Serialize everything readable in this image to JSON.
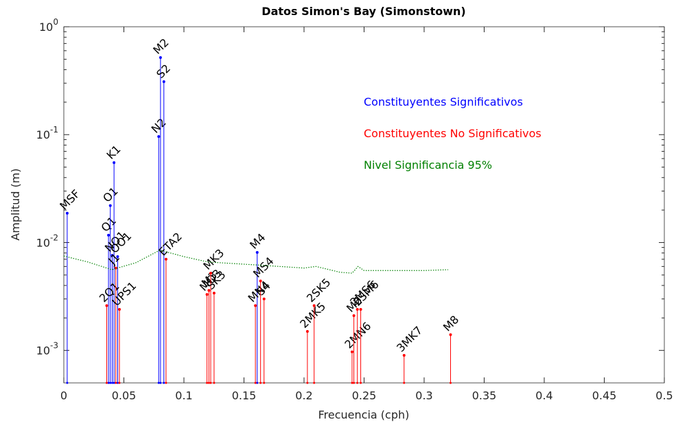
{
  "chart_data": {
    "type": "stem",
    "title": "Datos Simon's Bay (Simonstown)",
    "x_label": "Frecuencia (cph)",
    "y_label": "Amplitud (m)",
    "log_y": true,
    "xlim": [
      0,
      0.5
    ],
    "ylim": [
      0.0005,
      1
    ],
    "xticks": [
      0,
      0.05,
      0.1,
      0.15,
      0.2,
      0.25,
      0.3,
      0.35,
      0.4,
      0.45,
      0.5
    ],
    "yticks": [
      {
        "value": 0.001,
        "label": "10",
        "exponent": "-3"
      },
      {
        "value": 0.01,
        "label": "10",
        "exponent": "-2"
      },
      {
        "value": 0.1,
        "label": "10",
        "exponent": "-1"
      },
      {
        "value": 1,
        "label": "10",
        "exponent": "0"
      }
    ],
    "series": [
      {
        "name": "Constituyentes Significativos",
        "color": "#0000ff",
        "labels": [
          "MSF",
          "Q1",
          "O1",
          "NO1",
          "K1",
          "OO1",
          "N2",
          "M2",
          "S2",
          "M4"
        ],
        "x": [
          0.0028,
          0.0372,
          0.0387,
          0.0403,
          0.0418,
          0.0448,
          0.079,
          0.0805,
          0.0833,
          0.161
        ],
        "values": [
          0.0187,
          0.0117,
          0.022,
          0.0076,
          0.055,
          0.0074,
          0.096,
          0.518,
          0.31,
          0.0081
        ]
      },
      {
        "name": "Constituyentes No Significativos",
        "color": "#ff0000",
        "labels": [
          "2Q1",
          "J1",
          "UPS1",
          "ETA2",
          "MO3",
          "M3",
          "MK3",
          "SK3",
          "MN4",
          "MS4",
          "S4",
          "2MK5",
          "2SK5",
          "2MN6",
          "M6",
          "2MS6",
          "2SM6",
          "3MK7",
          "M8"
        ],
        "x": [
          0.0357,
          0.0433,
          0.0463,
          0.0851,
          0.1192,
          0.1208,
          0.1223,
          0.1251,
          0.1595,
          0.1638,
          0.1667,
          0.2028,
          0.2084,
          0.24,
          0.2415,
          0.2444,
          0.2472,
          0.2833,
          0.322
        ],
        "values": [
          0.0026,
          0.0058,
          0.0024,
          0.007,
          0.0033,
          0.0036,
          0.0052,
          0.0034,
          0.0026,
          0.0044,
          0.003,
          0.0015,
          0.0026,
          0.00097,
          0.0021,
          0.0024,
          0.0024,
          0.0009,
          0.0014
        ]
      },
      {
        "name": "Nivel Significancia 95%",
        "color": "#008000",
        "x": [
          0,
          0.02,
          0.04,
          0.06,
          0.08,
          0.1,
          0.12,
          0.16,
          0.2,
          0.21,
          0.23,
          0.24,
          0.245,
          0.25,
          0.3,
          0.32
        ],
        "values": [
          0.0075,
          0.0066,
          0.0056,
          0.0065,
          0.0085,
          0.0074,
          0.0066,
          0.0062,
          0.0058,
          0.006,
          0.0053,
          0.0052,
          0.006,
          0.0055,
          0.0055,
          0.0056
        ]
      }
    ]
  }
}
